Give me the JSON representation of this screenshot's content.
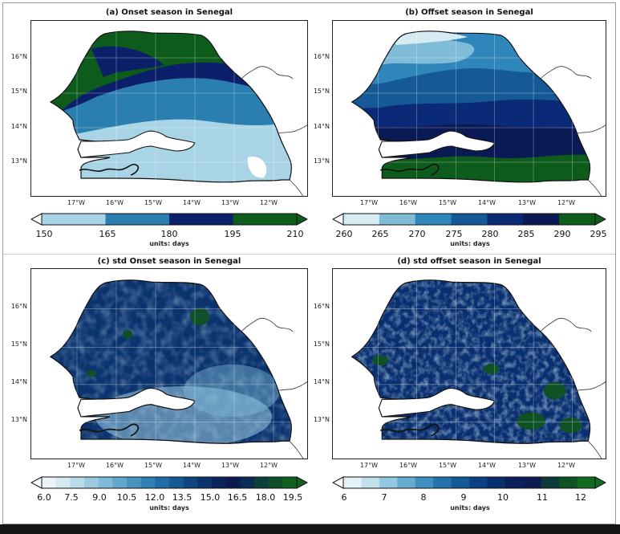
{
  "panels": [
    {
      "id": "a",
      "title": "(a) Onset season in Senegal",
      "lat_labels": [
        "16°N",
        "15°N",
        "14°N",
        "13°N"
      ],
      "lon_labels": [
        "17°W",
        "16°W",
        "15°W",
        "14°W",
        "13°W",
        "12°W"
      ],
      "colorbar_ticks": [
        "150",
        "165",
        "180",
        "195",
        "210"
      ],
      "colorbar_colors": [
        "#a8d4e6",
        "#2a7fb0",
        "#0b1f6b",
        "#0d5c1c"
      ],
      "units": "units: days"
    },
    {
      "id": "b",
      "title": "(b) Offset season in Senegal",
      "lat_labels": [
        "16°N",
        "15°N",
        "14°N",
        "13°N"
      ],
      "lon_labels": [
        "17°W",
        "16°W",
        "15°W",
        "14°W",
        "13°W",
        "12°W"
      ],
      "colorbar_ticks": [
        "260",
        "265",
        "270",
        "275",
        "280",
        "285",
        "290",
        "295"
      ],
      "colorbar_colors": [
        "#d6ecf3",
        "#7fbcd8",
        "#2f86ba",
        "#155a96",
        "#0a2a78",
        "#0a1a55",
        "#0d5c1c"
      ],
      "units": "units: days"
    },
    {
      "id": "c",
      "title": "(c) std Onset season in Senegal",
      "lat_labels": [
        "16°N",
        "15°N",
        "14°N",
        "13°N"
      ],
      "lon_labels": [
        "17°W",
        "16°W",
        "15°W",
        "14°W",
        "13°W",
        "12°W"
      ],
      "colorbar_ticks": [
        "6.0",
        "7.5",
        "9.0",
        "10.5",
        "12.0",
        "13.5",
        "15.0",
        "16.5",
        "18.0",
        "19.5"
      ],
      "colorbar_colors": [
        "#e9f3f8",
        "#d4e9f2",
        "#b9dbea",
        "#9ccbe1",
        "#7fbad8",
        "#62a8cd",
        "#4794c1",
        "#3180b4",
        "#216ca6",
        "#165993",
        "#0f4580",
        "#0b336e",
        "#09245e",
        "#0a1b52",
        "#0b2a55",
        "#0e3e3c",
        "#105028",
        "#116020"
      ],
      "units": "units: days"
    },
    {
      "id": "d",
      "title": "(d) std offset season in Senegal",
      "lat_labels": [
        "16°N",
        "15°N",
        "14°N",
        "13°N"
      ],
      "lon_labels": [
        "17°W",
        "16°W",
        "15°W",
        "14°W",
        "13°W",
        "12°W"
      ],
      "colorbar_ticks": [
        "6",
        "7",
        "8",
        "9",
        "10",
        "11",
        "12"
      ],
      "colorbar_colors": [
        "#e4f1f7",
        "#c0e0ee",
        "#93c8e1",
        "#66acd1",
        "#3f8fc0",
        "#2472ac",
        "#145a97",
        "#0c4283",
        "#0a2f70",
        "#0a205c",
        "#0c1c50",
        "#0d3a38",
        "#0f5226",
        "#116a1e"
      ],
      "units": "units: days"
    }
  ]
}
